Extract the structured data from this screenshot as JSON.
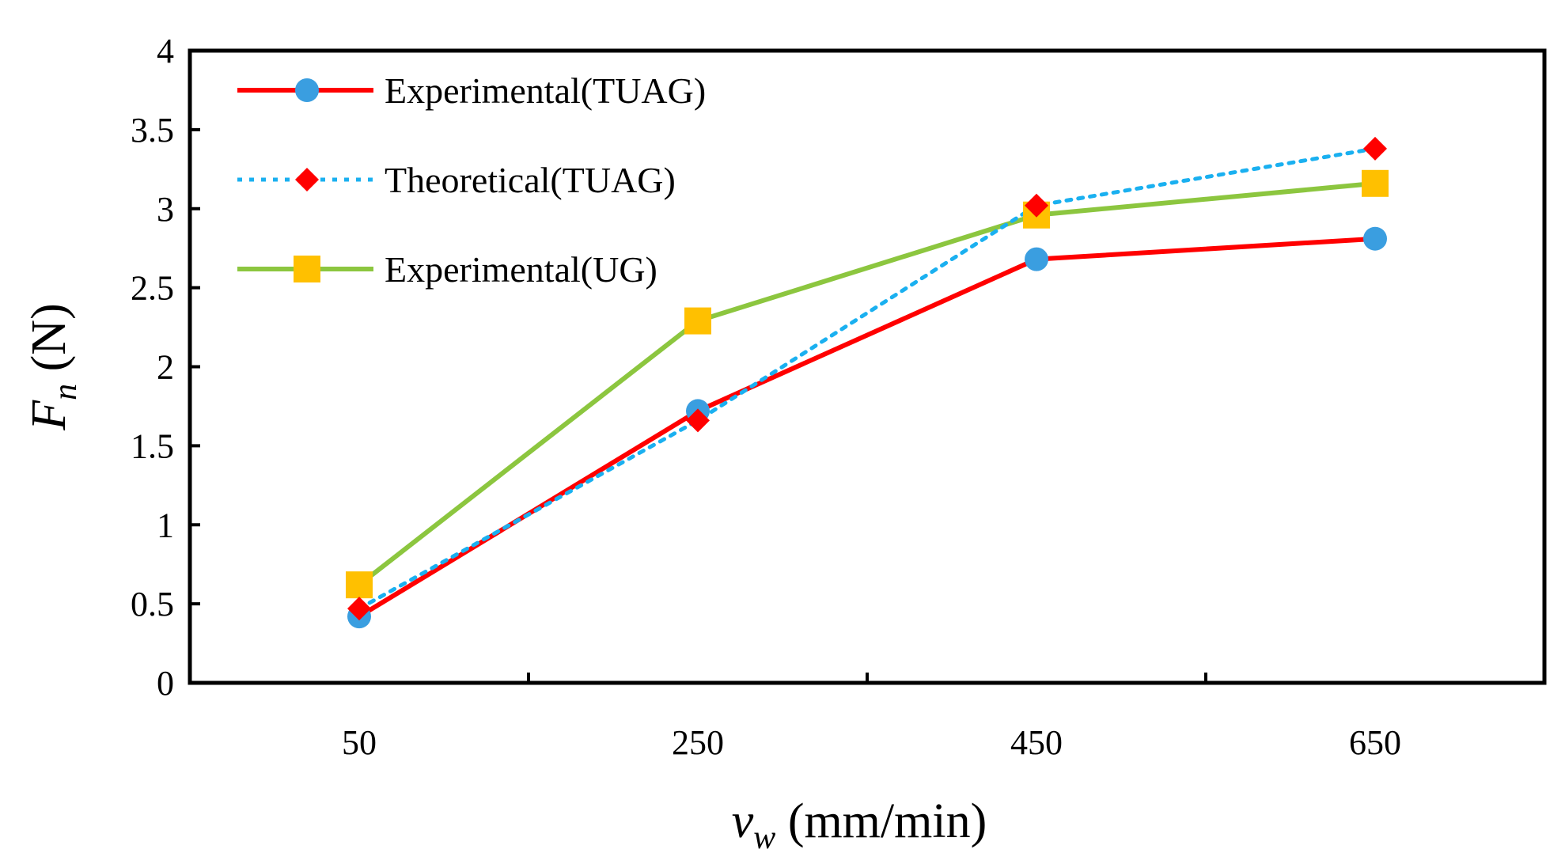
{
  "chart_data": {
    "type": "line",
    "title": "",
    "xlabel": {
      "main": "v",
      "sub": "w",
      "unit": "(mm/min)"
    },
    "ylabel": {
      "main": "F",
      "sub": "n",
      "unit": "(N)"
    },
    "categories": [
      "50",
      "250",
      "450",
      "650"
    ],
    "xlim": [
      -0.5,
      3.5
    ],
    "ylim": [
      0,
      4
    ],
    "yticks": [
      {
        "value": 0,
        "label": "0"
      },
      {
        "value": 0.5,
        "label": "0.5"
      },
      {
        "value": 1,
        "label": "1"
      },
      {
        "value": 1.5,
        "label": "1.5"
      },
      {
        "value": 2,
        "label": "2"
      },
      {
        "value": 2.5,
        "label": "2.5"
      },
      {
        "value": 3,
        "label": "3"
      },
      {
        "value": 3.5,
        "label": "3.5"
      },
      {
        "value": 4,
        "label": "4"
      }
    ],
    "grid": false,
    "legend_position": "top-left",
    "series": [
      {
        "name": "Experimental(TUAG)",
        "values": [
          0.42,
          1.72,
          2.68,
          2.81
        ],
        "line_color": "#ff0000",
        "marker_color": "#3a9ee0",
        "marker": "circle",
        "line_style": "solid",
        "draw_order": 1
      },
      {
        "name": "Theoretical(TUAG)",
        "values": [
          0.47,
          1.66,
          3.02,
          3.38
        ],
        "line_color": "#1ab0f0",
        "marker_color": "#ff0000",
        "marker": "diamond",
        "line_style": "dotted",
        "draw_order": 2
      },
      {
        "name": "Experimental(UG)",
        "values": [
          0.62,
          2.29,
          2.96,
          3.16
        ],
        "line_color": "#8cc63f",
        "marker_color": "#ffc000",
        "marker": "square",
        "line_style": "solid",
        "draw_order": 0
      }
    ]
  }
}
